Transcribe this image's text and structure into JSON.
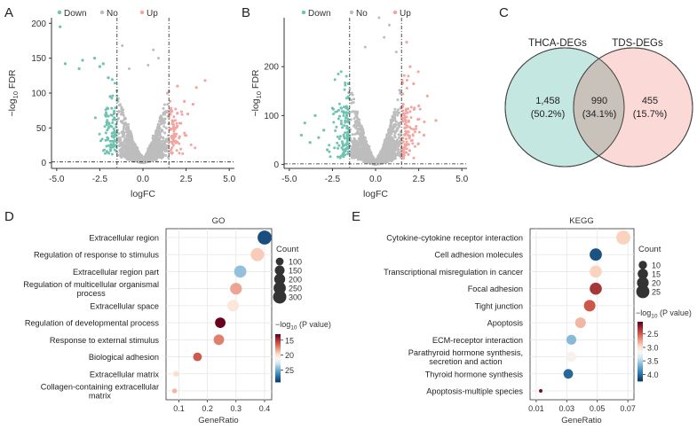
{
  "colors": {
    "down": "#6fc3b0",
    "no": "#bdbdbd",
    "up": "#f3a5a0",
    "venn_left": "#c5e7e2",
    "venn_right": "#fbd9d7",
    "venn_overlap": "#c9c2bb",
    "axis": "#333333"
  },
  "panel_labels": {
    "a": "A",
    "b": "B",
    "c": "C",
    "d": "D",
    "e": "E"
  },
  "chart_data": [
    {
      "panel": "A",
      "type": "scatter",
      "subtype": "volcano",
      "xlabel": "logFC",
      "ylabel_main": "−log",
      "ylabel_sub": "10",
      "ylabel_tail": " FDR",
      "xlim": [
        -5.3,
        5.3
      ],
      "ylim": [
        -8,
        208
      ],
      "xticks": [
        "-5.0",
        "-2.5",
        "0.0",
        "2.5",
        "5.0"
      ],
      "yticks": [
        "0",
        "50",
        "100",
        "150",
        "200"
      ],
      "xtick_values": [
        -5,
        -2.5,
        0,
        2.5,
        5
      ],
      "ytick_values": [
        0,
        50,
        100,
        150,
        200
      ],
      "logfc_cutoffs": [
        -1.5,
        1.5
      ],
      "fdr_cutoff_y": 1.3,
      "legend": [
        "Down",
        "No",
        "Up"
      ],
      "seed": 11,
      "xspread": 0.62,
      "ymax": 150,
      "outliers": {
        "down": [
          [
            -4.8,
            195
          ],
          [
            -4.5,
            142
          ],
          [
            -3.5,
            147
          ],
          [
            -3.7,
            135
          ],
          [
            -2.8,
            150
          ],
          [
            -2.5,
            138
          ],
          [
            -2.3,
            142
          ],
          [
            -2.0,
            122
          ],
          [
            -1.9,
            95
          ],
          [
            -2.1,
            58
          ]
        ],
        "up": [
          [
            3.1,
            108
          ],
          [
            3.6,
            118
          ],
          [
            2.6,
            70
          ],
          [
            2.4,
            88
          ],
          [
            2.0,
            110
          ],
          [
            2.9,
            84
          ]
        ],
        "no": [
          [
            -1.2,
            168
          ],
          [
            0.6,
            162
          ],
          [
            0.9,
            150
          ],
          [
            -0.8,
            135
          ],
          [
            0.3,
            140
          ]
        ]
      }
    },
    {
      "panel": "B",
      "type": "scatter",
      "subtype": "volcano",
      "xlabel": "logFC",
      "ylabel_main": "−log",
      "ylabel_sub": "10",
      "ylabel_tail": " FDR",
      "xlim": [
        -5.3,
        5.3
      ],
      "ylim": [
        -8,
        300
      ],
      "xticks": [
        "-5.0",
        "-2.5",
        "0.0",
        "2.5",
        "5.0"
      ],
      "yticks": [
        "0",
        "100",
        "200"
      ],
      "xtick_values": [
        -5,
        -2.5,
        0,
        2.5,
        5
      ],
      "ytick_values": [
        0,
        100,
        200
      ],
      "logfc_cutoffs": [
        -1.5,
        1.5
      ],
      "fdr_cutoff_y": 1.3,
      "legend": [
        "Down",
        "No",
        "Up"
      ],
      "seed": 29,
      "xspread": 0.7,
      "ymax": 240,
      "outliers": {
        "down": [
          [
            -4.3,
            60
          ],
          [
            -4.1,
            85
          ],
          [
            -3.8,
            45
          ],
          [
            -3.5,
            100
          ],
          [
            -3.0,
            70
          ],
          [
            -2.5,
            115
          ],
          [
            -3.3,
            55
          ],
          [
            -2.8,
            30
          ]
        ],
        "up": [
          [
            2.5,
            120
          ],
          [
            3.0,
            140
          ],
          [
            2.2,
            165
          ],
          [
            3.5,
            90
          ],
          [
            2.8,
            60
          ],
          [
            1.8,
            250
          ],
          [
            2.0,
            200
          ]
        ],
        "no": [
          [
            0.8,
            285
          ],
          [
            0.2,
            300
          ],
          [
            -0.6,
            240
          ],
          [
            1.2,
            230
          ],
          [
            0.5,
            260
          ]
        ]
      }
    },
    {
      "panel": "C",
      "type": "venn",
      "sets": [
        {
          "name": "THCA-DEGs",
          "only": "1,458",
          "pct": "(50.2%)"
        },
        {
          "name": "TDS-DEGs",
          "only": "455",
          "pct": "(15.7%)"
        }
      ],
      "intersection": {
        "count": "990",
        "pct": "(34.1%)"
      }
    },
    {
      "panel": "D",
      "type": "scatter",
      "subtype": "dotplot",
      "title": "GO",
      "xlabel": "GeneRatio",
      "xlim": [
        0.055,
        0.425
      ],
      "xticks": [
        "0.1",
        "0.2",
        "0.3",
        "0.4"
      ],
      "xtick_values": [
        0.1,
        0.2,
        0.3,
        0.4
      ],
      "terms": [
        {
          "label": [
            "Extracellular region"
          ],
          "ratio": 0.4,
          "count": 340,
          "p": 28
        },
        {
          "label": [
            "Regulation of response to stimulus"
          ],
          "ratio": 0.375,
          "count": 300,
          "p": 19
        },
        {
          "label": [
            "Extracellular region part"
          ],
          "ratio": 0.315,
          "count": 250,
          "p": 24
        },
        {
          "label": [
            "Regulation of multicellular organismal",
            "process"
          ],
          "ratio": 0.3,
          "count": 230,
          "p": 18
        },
        {
          "label": [
            "Extracellular space"
          ],
          "ratio": 0.29,
          "count": 220,
          "p": 20
        },
        {
          "label": [
            "Regulation of developmental process"
          ],
          "ratio": 0.245,
          "count": 180,
          "p": 13
        },
        {
          "label": [
            "Response to external stimulus"
          ],
          "ratio": 0.24,
          "count": 175,
          "p": 17
        },
        {
          "label": [
            "Biological adhesion"
          ],
          "ratio": 0.165,
          "count": 120,
          "p": 16
        },
        {
          "label": [
            "Extracellular matrix"
          ],
          "ratio": 0.09,
          "count": 60,
          "p": 19.5
        },
        {
          "label": [
            "Collagen-containing extracellular",
            "matrix"
          ],
          "ratio": 0.085,
          "count": 55,
          "p": 18.5
        }
      ],
      "size_legend_title": "Count",
      "size_legend": [
        100,
        150,
        200,
        250,
        300
      ],
      "size_range": [
        50,
        350
      ],
      "color_legend_title": "−log",
      "color_legend_sub": "10",
      "color_legend_tail": " (P value)",
      "color_range": [
        13,
        29
      ],
      "color_ticks": [
        15,
        20,
        25
      ]
    },
    {
      "panel": "E",
      "type": "scatter",
      "subtype": "dotplot",
      "title": "KEGG",
      "xlabel": "GeneRatio",
      "xlim": [
        0.006,
        0.074
      ],
      "xticks": [
        "0.01",
        "0.03",
        "0.05",
        "0.07"
      ],
      "xtick_values": [
        0.01,
        0.03,
        0.05,
        0.07
      ],
      "terms": [
        {
          "label": [
            "Cytokine-cytokine receptor interaction"
          ],
          "ratio": 0.067,
          "count": 29,
          "p": 2.9
        },
        {
          "label": [
            "Cell adhesion molecules"
          ],
          "ratio": 0.049,
          "count": 22,
          "p": 4.1
        },
        {
          "label": [
            "Transcriptional misregulation in cancer"
          ],
          "ratio": 0.049,
          "count": 21,
          "p": 2.9
        },
        {
          "label": [
            "Focal adhesion"
          ],
          "ratio": 0.049,
          "count": 21,
          "p": 2.3
        },
        {
          "label": [
            "Tight junction"
          ],
          "ratio": 0.045,
          "count": 19,
          "p": 2.45
        },
        {
          "label": [
            "Apoptosis"
          ],
          "ratio": 0.039,
          "count": 16,
          "p": 2.8
        },
        {
          "label": [
            "ECM-receptor interaction"
          ],
          "ratio": 0.033,
          "count": 14,
          "p": 3.6
        },
        {
          "label": [
            "Parathyroid hormone synthesis,",
            "secretion and action"
          ],
          "ratio": 0.033,
          "count": 14,
          "p": 3.1
        },
        {
          "label": [
            "Thyroid hormone synthesis"
          ],
          "ratio": 0.031,
          "count": 13,
          "p": 4.0
        },
        {
          "label": [
            "Apoptosis-multiple species"
          ],
          "ratio": 0.013,
          "count": 5,
          "p": 2.1
        }
      ],
      "size_legend_title": "Count",
      "size_legend": [
        10,
        15,
        20,
        25
      ],
      "size_range": [
        5,
        30
      ],
      "color_legend_title": "−log",
      "color_legend_sub": "10",
      "color_legend_tail": " (P value)",
      "color_range": [
        2.05,
        4.25
      ],
      "color_ticks": [
        2.5,
        3.0,
        3.5,
        4.0
      ]
    }
  ]
}
